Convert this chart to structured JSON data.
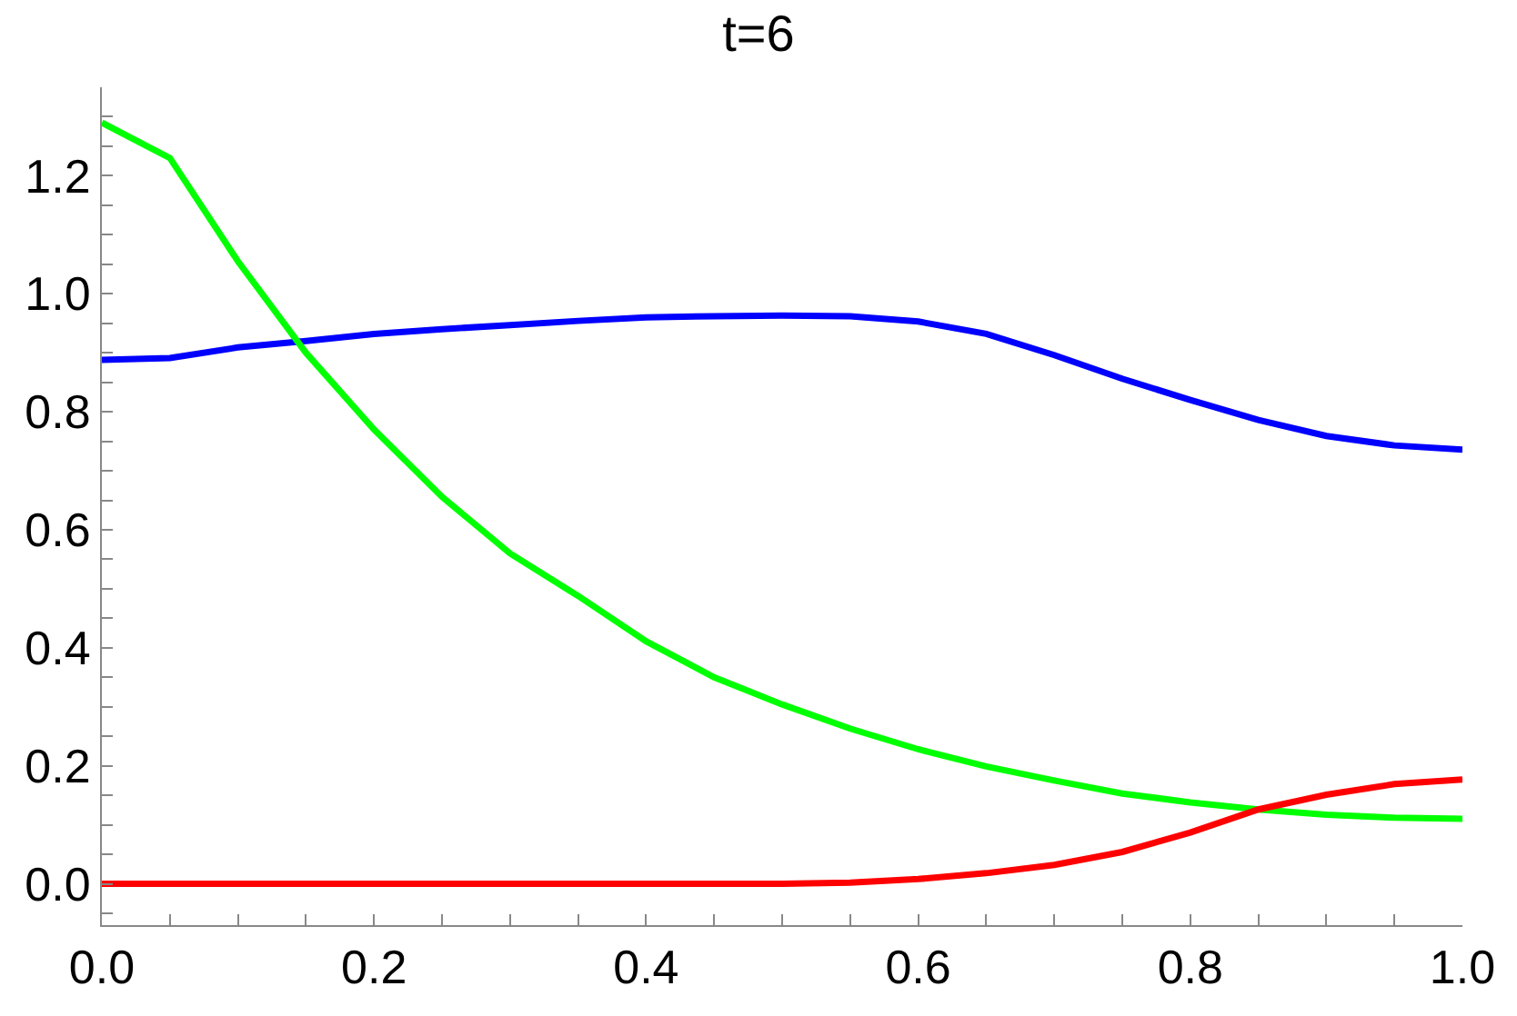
{
  "chart_data": {
    "type": "line",
    "title": "t=6",
    "x": [
      0,
      0.05,
      0.1,
      0.15,
      0.2,
      0.25,
      0.3,
      0.35,
      0.4,
      0.45,
      0.5,
      0.55,
      0.6,
      0.65,
      0.7,
      0.75,
      0.8,
      0.85,
      0.9,
      0.95,
      1.0
    ],
    "series": [
      {
        "color": "#0000ff",
        "values": [
          0.888,
          0.891,
          0.909,
          0.92,
          0.932,
          0.94,
          0.947,
          0.954,
          0.96,
          0.962,
          0.963,
          0.962,
          0.953,
          0.932,
          0.896,
          0.856,
          0.82,
          0.786,
          0.759,
          0.743,
          0.736
        ]
      },
      {
        "color": "#00ff00",
        "values": [
          1.29,
          1.23,
          1.055,
          0.9,
          0.77,
          0.656,
          0.56,
          0.488,
          0.411,
          0.35,
          0.304,
          0.263,
          0.228,
          0.199,
          0.175,
          0.153,
          0.138,
          0.126,
          0.117,
          0.112,
          0.11
        ]
      },
      {
        "color": "#ff0000",
        "values": [
          0,
          0,
          0,
          0,
          0,
          0,
          0,
          0,
          0,
          0,
          0,
          0.002,
          0.008,
          0.018,
          0.032,
          0.054,
          0.087,
          0.126,
          0.151,
          0.169,
          0.177
        ]
      }
    ],
    "xlim": [
      0,
      1
    ],
    "ylim": [
      -0.07,
      1.35
    ],
    "xticks": [
      {
        "value": 0,
        "label": "0.0"
      },
      {
        "value": 0.05,
        "label": null
      },
      {
        "value": 0.1,
        "label": null
      },
      {
        "value": 0.15,
        "label": null
      },
      {
        "value": 0.2,
        "label": "0.2"
      },
      {
        "value": 0.25,
        "label": null
      },
      {
        "value": 0.3,
        "label": null
      },
      {
        "value": 0.35,
        "label": null
      },
      {
        "value": 0.4,
        "label": "0.4"
      },
      {
        "value": 0.45,
        "label": null
      },
      {
        "value": 0.5,
        "label": null
      },
      {
        "value": 0.55,
        "label": null
      },
      {
        "value": 0.6,
        "label": "0.6"
      },
      {
        "value": 0.65,
        "label": null
      },
      {
        "value": 0.7,
        "label": null
      },
      {
        "value": 0.75,
        "label": null
      },
      {
        "value": 0.8,
        "label": "0.8"
      },
      {
        "value": 0.85,
        "label": null
      },
      {
        "value": 0.9,
        "label": null
      },
      {
        "value": 0.95,
        "label": null
      },
      {
        "value": 1,
        "label": "1.0"
      }
    ],
    "yticks": [
      {
        "value": -0.05,
        "label": null
      },
      {
        "value": 0,
        "label": "0.0"
      },
      {
        "value": 0.05,
        "label": null
      },
      {
        "value": 0.1,
        "label": null
      },
      {
        "value": 0.15,
        "label": null
      },
      {
        "value": 0.2,
        "label": "0.2"
      },
      {
        "value": 0.25,
        "label": null
      },
      {
        "value": 0.3,
        "label": null
      },
      {
        "value": 0.35,
        "label": null
      },
      {
        "value": 0.4,
        "label": "0.4"
      },
      {
        "value": 0.45,
        "label": null
      },
      {
        "value": 0.5,
        "label": null
      },
      {
        "value": 0.55,
        "label": null
      },
      {
        "value": 0.6,
        "label": "0.6"
      },
      {
        "value": 0.65,
        "label": null
      },
      {
        "value": 0.7,
        "label": null
      },
      {
        "value": 0.75,
        "label": null
      },
      {
        "value": 0.8,
        "label": "0.8"
      },
      {
        "value": 0.85,
        "label": null
      },
      {
        "value": 0.9,
        "label": null
      },
      {
        "value": 0.95,
        "label": null
      },
      {
        "value": 1,
        "label": "1.0"
      },
      {
        "value": 1.05,
        "label": null
      },
      {
        "value": 1.1,
        "label": null
      },
      {
        "value": 1.15,
        "label": null
      },
      {
        "value": 1.2,
        "label": "1.2"
      },
      {
        "value": 1.25,
        "label": null
      },
      {
        "value": 1.3,
        "label": null
      }
    ],
    "grid": false,
    "marker": "none",
    "line_style": "solid"
  }
}
